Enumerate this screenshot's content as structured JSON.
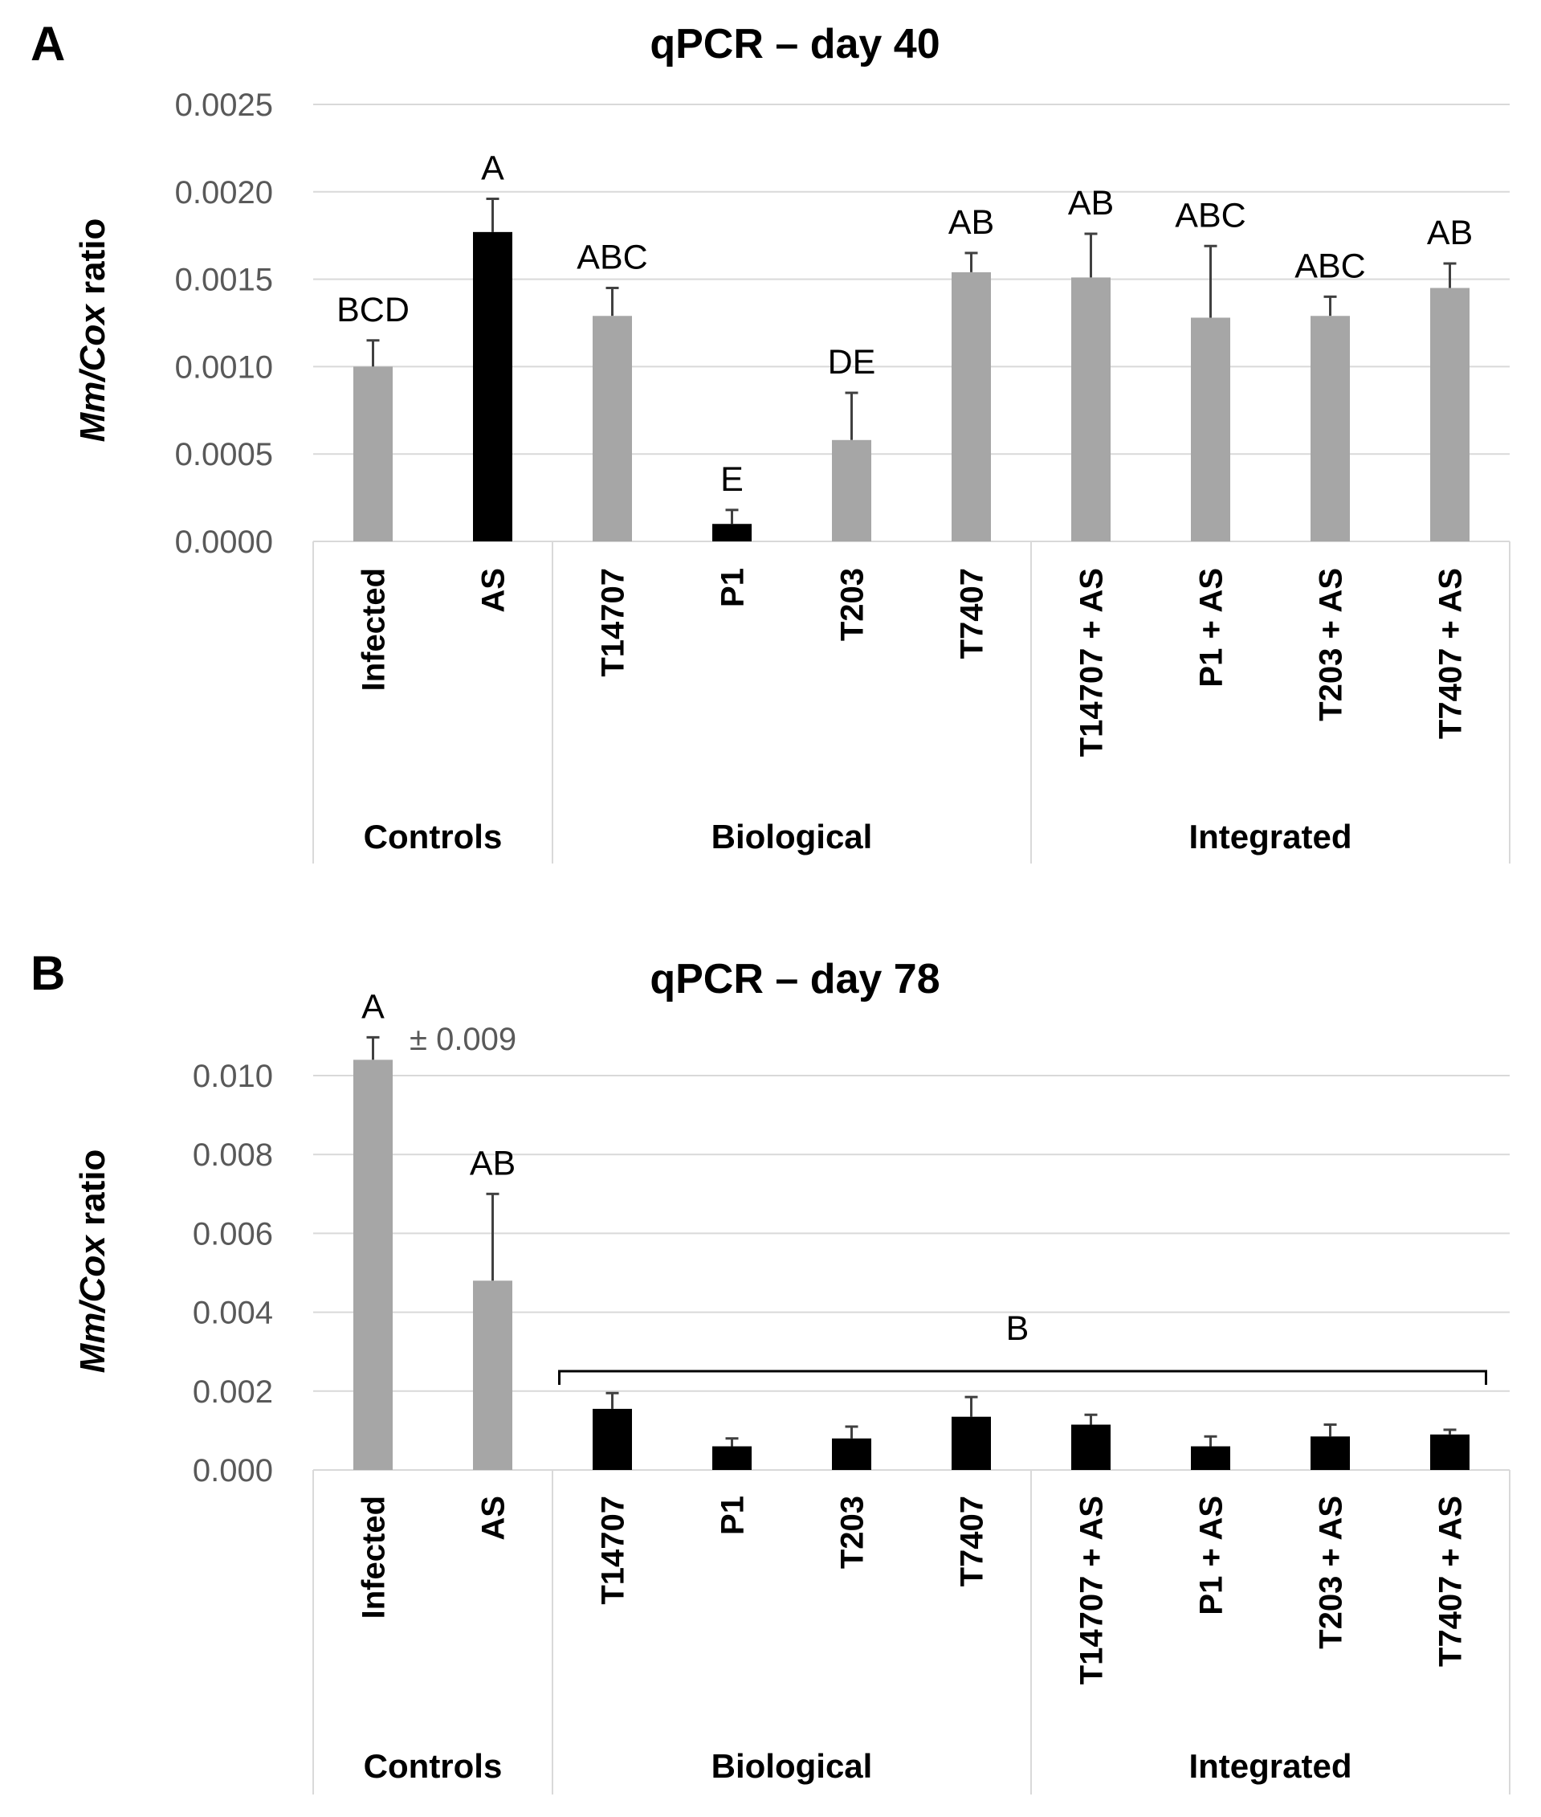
{
  "chart_data": [
    {
      "type": "bar",
      "panel_label": "A",
      "title": "qPCR – day 40",
      "ylabel_italic": "Mm/Cox",
      "ylabel_rest": " ratio",
      "ylim": [
        0,
        0.0025
      ],
      "yticks": [
        "0.0000",
        "0.0005",
        "0.0010",
        "0.0015",
        "0.0020",
        "0.0025"
      ],
      "ytick_values": [
        0,
        0.0005,
        0.001,
        0.0015,
        0.002,
        0.0025
      ],
      "grid": true,
      "categories": [
        "Infected",
        "AS",
        "T14707",
        "P1",
        "T203",
        "T7407",
        "T14707 + AS",
        "P1 + AS",
        "T203 + AS",
        "T7407 + AS"
      ],
      "groups": [
        {
          "label": "Controls",
          "count": 2
        },
        {
          "label": "Biological",
          "count": 4
        },
        {
          "label": "Integrated",
          "count": 4
        }
      ],
      "values": [
        0.001,
        0.00177,
        0.00129,
        0.0001,
        0.00058,
        0.00154,
        0.00151,
        0.00128,
        0.00129,
        0.00145
      ],
      "errors": [
        0.00015,
        0.00019,
        0.00016,
        8e-05,
        0.00027,
        0.00011,
        0.00025,
        0.00041,
        0.00011,
        0.00014
      ],
      "colors": [
        "#a6a6a6",
        "#000000",
        "#a6a6a6",
        "#000000",
        "#a6a6a6",
        "#a6a6a6",
        "#a6a6a6",
        "#a6a6a6",
        "#a6a6a6",
        "#a6a6a6"
      ],
      "significance_labels": [
        "BCD",
        "A",
        "ABC",
        "E",
        "DE",
        "AB",
        "AB",
        "ABC",
        "ABC",
        "AB"
      ]
    },
    {
      "type": "bar",
      "panel_label": "B",
      "title": "qPCR – day 78",
      "ylabel_italic": "Mm/Cox",
      "ylabel_rest": " ratio",
      "ylim": [
        0,
        0.01
      ],
      "yticks": [
        "0.000",
        "0.002",
        "0.004",
        "0.006",
        "0.008",
        "0.010"
      ],
      "ytick_values": [
        0,
        0.002,
        0.004,
        0.006,
        0.008,
        0.01
      ],
      "grid": true,
      "categories": [
        "Infected",
        "AS",
        "T14707",
        "P1",
        "T203",
        "T7407",
        "T14707 + AS",
        "P1 + AS",
        "T203 + AS",
        "T7407 + AS"
      ],
      "groups": [
        {
          "label": "Controls",
          "count": 2
        },
        {
          "label": "Biological",
          "count": 4
        },
        {
          "label": "Integrated",
          "count": 4
        }
      ],
      "values": [
        0.0104,
        0.0048,
        0.00155,
        0.0006,
        0.0008,
        0.00135,
        0.00115,
        0.0006,
        0.00085,
        0.0009
      ],
      "errors": [
        0.009,
        0.0022,
        0.0004,
        0.0002,
        0.0003,
        0.0005,
        0.00025,
        0.00025,
        0.0003,
        0.00012
      ],
      "colors": [
        "#a6a6a6",
        "#a6a6a6",
        "#000000",
        "#000000",
        "#000000",
        "#000000",
        "#000000",
        "#000000",
        "#000000",
        "#000000"
      ],
      "significance_labels": [
        "A",
        "AB"
      ],
      "error_annotation": "± 0.009",
      "bracket_label": "B",
      "bracket_span": [
        "T14707",
        "T7407 + AS"
      ]
    }
  ]
}
